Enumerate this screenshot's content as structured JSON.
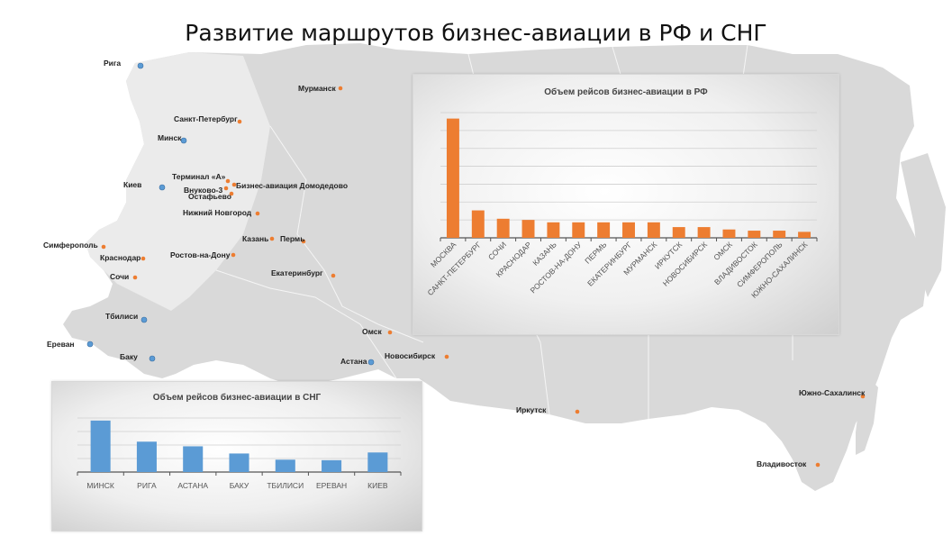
{
  "title": "Развитие маршрутов бизнес-авиации в РФ и СНГ",
  "colors": {
    "rf_accent": "#ED7D31",
    "cis_accent": "#5B9BD5",
    "map_fill": "#d9d9d9",
    "map_fill_light": "#e9e9e9"
  },
  "map": {
    "cities_rf": [
      {
        "label": "Мурманск"
      },
      {
        "label": "Санкт-Петербург"
      },
      {
        "label": "Терминал «А»"
      },
      {
        "label": "Бизнес-авиация Домодедово"
      },
      {
        "label": "Внуково-3"
      },
      {
        "label": "Остафьево"
      },
      {
        "label": "Нижний Новгород"
      },
      {
        "label": "Казань"
      },
      {
        "label": "Пермь"
      },
      {
        "label": "Симферополь"
      },
      {
        "label": "Краснодар"
      },
      {
        "label": "Ростов-на-Дону"
      },
      {
        "label": "Сочи"
      },
      {
        "label": "Екатеринбург"
      },
      {
        "label": "Омск"
      },
      {
        "label": "Новосибирск"
      },
      {
        "label": "Иркутск"
      },
      {
        "label": "Южно-Сахалинск"
      },
      {
        "label": "Владивосток"
      }
    ],
    "cities_cis": [
      {
        "label": "Рига"
      },
      {
        "label": "Минск"
      },
      {
        "label": "Киев"
      },
      {
        "label": "Тбилиси"
      },
      {
        "label": "Ереван"
      },
      {
        "label": "Баку"
      },
      {
        "label": "Астана"
      }
    ]
  },
  "chart_data": [
    {
      "type": "bar",
      "title": "Объем рейсов бизнес-авиации в РФ",
      "categories": [
        "МОСКВА",
        "САНКТ-ПЕТЕРБУРГ",
        "СОЧИ",
        "КРАСНОДАР",
        "КАЗАНЬ",
        "РОСТОВ-НА-ДОНУ",
        "ПЕРМЬ",
        "ЕКАТЕРИНБУРГ",
        "МУРМАНСК",
        "ИРКУТСК",
        "НОВОСИБИРСК",
        "ОМСК",
        "ВЛАДИВОСТОК",
        "СИМФЕРОПОЛЬ",
        "ЮЖНО-САХАЛИНСК"
      ],
      "values": [
        100,
        23,
        16,
        15,
        13,
        13,
        13,
        13,
        13,
        9,
        9,
        7,
        6,
        6,
        5
      ],
      "ylim": [
        0,
        105
      ],
      "grid": true,
      "color": "#ED7D31"
    },
    {
      "type": "bar",
      "title": "Объем рейсов бизнес-авиации в СНГ",
      "categories": [
        "МИНСК",
        "РИГА",
        "АСТАНА",
        "БАКУ",
        "ТБИЛИСИ",
        "ЕРЕВАН",
        "КИЕВ"
      ],
      "values": [
        100,
        59,
        50,
        36,
        24,
        23,
        38
      ],
      "ylim": [
        0,
        105
      ],
      "grid": true,
      "color": "#5B9BD5"
    }
  ]
}
